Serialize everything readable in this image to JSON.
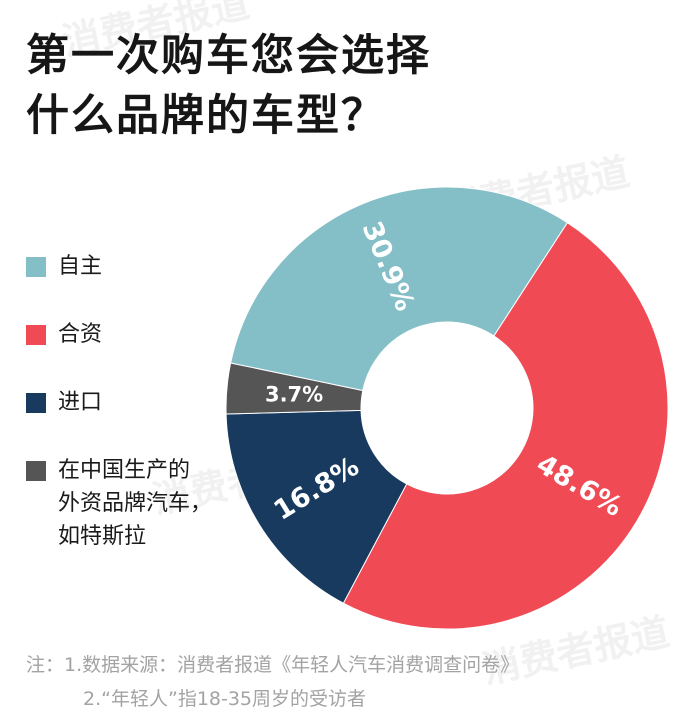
{
  "title": {
    "line1": "第一次购车您会选择",
    "line2": "什么品牌的车型？"
  },
  "watermark": "消费者报道",
  "legend": [
    {
      "label_lines": [
        "自主"
      ],
      "color": "#84bfc7"
    },
    {
      "label_lines": [
        "合资"
      ],
      "color": "#f04a55"
    },
    {
      "label_lines": [
        "进口"
      ],
      "color": "#183a5e"
    },
    {
      "label_lines": [
        "在中国生产的",
        "外资品牌汽车，",
        "如特斯拉"
      ],
      "color": "#555555"
    }
  ],
  "chart_data": {
    "type": "pie",
    "donut": true,
    "title": "第一次购车您会选择什么品牌的车型？",
    "categories": [
      "合资",
      "进口",
      "在中国生产的外资品牌汽车，如特斯拉",
      "自主"
    ],
    "values": [
      48.6,
      16.8,
      3.7,
      30.9
    ],
    "value_labels": [
      "48.6%",
      "16.8%",
      "3.7%",
      "30.9%"
    ],
    "colors": [
      "#f04a55",
      "#183a5e",
      "#555555",
      "#84bfc7"
    ],
    "legend_placement": "left"
  },
  "note": {
    "line1": "注：1.数据来源：消费者报道《年轻人汽车消费调查问卷》",
    "line2": "2.“年轻人”指18-35周岁的受访者"
  }
}
